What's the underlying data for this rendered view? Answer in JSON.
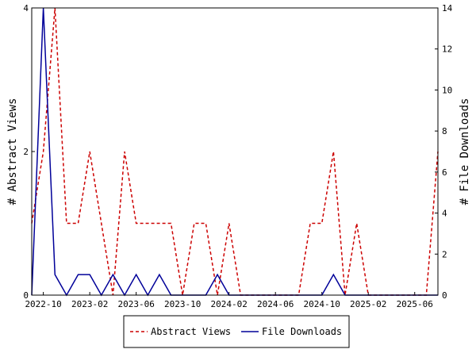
{
  "chart_data": {
    "type": "line",
    "x": [
      "2022-09",
      "2022-10",
      "2022-11",
      "2022-12",
      "2023-01",
      "2023-02",
      "2023-03",
      "2023-04",
      "2023-05",
      "2023-06",
      "2023-07",
      "2023-08",
      "2023-09",
      "2023-10",
      "2023-11",
      "2023-12",
      "2024-01",
      "2024-02",
      "2024-03",
      "2024-04",
      "2024-05",
      "2024-06",
      "2024-07",
      "2024-08",
      "2024-09",
      "2024-10",
      "2024-11",
      "2024-12",
      "2025-01",
      "2025-02",
      "2025-03",
      "2025-04",
      "2025-05",
      "2025-06",
      "2025-07",
      "2025-08"
    ],
    "x_ticks": [
      "2022-10",
      "2023-02",
      "2023-06",
      "2023-10",
      "2024-02",
      "2024-06",
      "2024-10",
      "2025-02",
      "2025-06"
    ],
    "series": [
      {
        "name": "Abstract Views",
        "axis": "left",
        "color": "#cc0000",
        "dash": "dashed",
        "values": [
          1,
          2,
          4,
          1,
          1,
          2,
          1,
          0,
          2,
          1,
          1,
          1,
          1,
          0,
          1,
          1,
          0,
          1,
          0,
          0,
          0,
          0,
          0,
          0,
          1,
          1,
          2,
          0,
          1,
          0,
          0,
          0,
          0,
          0,
          0,
          2
        ]
      },
      {
        "name": "File Downloads",
        "axis": "right",
        "color": "#000099",
        "dash": "solid",
        "values": [
          0,
          14,
          1,
          0,
          1,
          1,
          0,
          1,
          0,
          1,
          0,
          1,
          0,
          0,
          0,
          0,
          1,
          0,
          0,
          0,
          0,
          0,
          0,
          0,
          0,
          0,
          1,
          0,
          0,
          0,
          0,
          0,
          0,
          0,
          0,
          0
        ]
      }
    ],
    "ylabel": "# Abstract Views",
    "y2label": "# File Downloads",
    "ylim": [
      0,
      4
    ],
    "y_ticks": [
      0,
      2,
      4
    ],
    "y2lim": [
      0,
      14
    ],
    "y2_ticks": [
      0,
      2,
      4,
      6,
      8,
      10,
      12,
      14
    ],
    "grid": false,
    "legend_position": "bottom-center"
  }
}
